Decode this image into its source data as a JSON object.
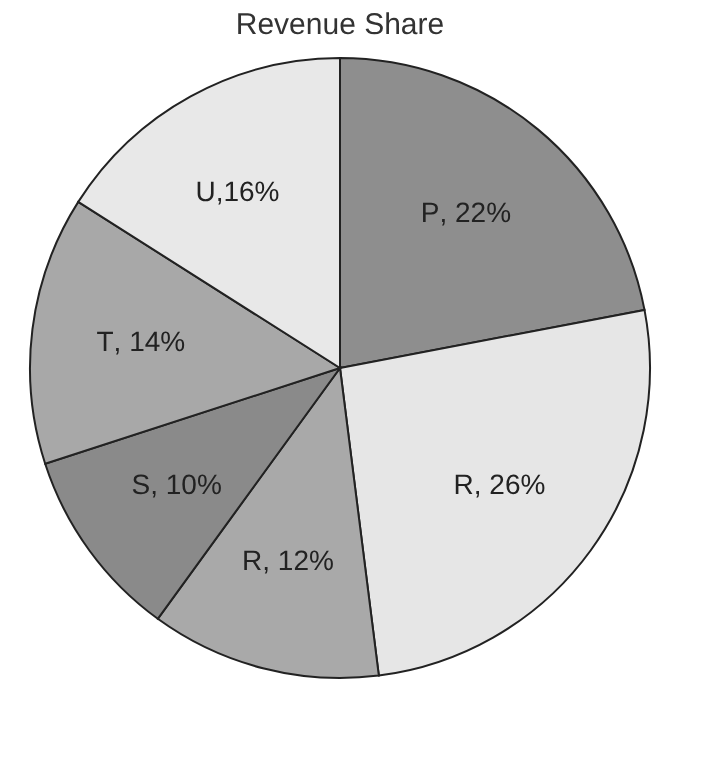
{
  "chart_data": {
    "type": "pie",
    "title": "Revenue Share",
    "categories": [
      "P",
      "R",
      "R",
      "S",
      "T",
      "U"
    ],
    "values": [
      22,
      26,
      12,
      10,
      14,
      16
    ],
    "value_labels": [
      ", 22%",
      ", 26%",
      ", 12%",
      ", 10%",
      ", 14%",
      ",16%"
    ],
    "colors": [
      "#8e8e8e",
      "#e6e6e6",
      "#a9a9a9",
      "#8a8a8a",
      "#a8a8a8",
      "#e8e8e8"
    ],
    "legend": false
  }
}
